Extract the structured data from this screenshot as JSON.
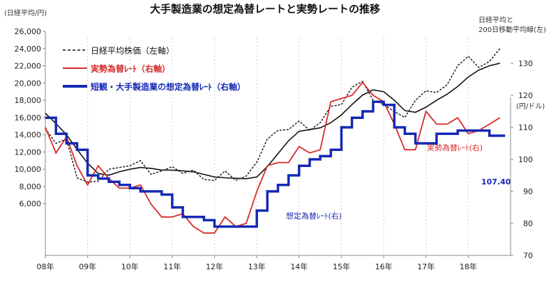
{
  "chart_data": {
    "type": "line",
    "title": "大手製造業の想定為替レートと実勢レートの推移",
    "y_left_label": "(日経平均/円)",
    "y_right_label": "(円/ドル)",
    "top_right_label_line1": "日経平均と",
    "top_right_label_line2": "200日移動平均線(左)",
    "left_ylim": [
      0,
      26000
    ],
    "left_yticks": [
      "26,000",
      "24,000",
      "22,000",
      "20,000",
      "18,000",
      "16,000",
      "14,000",
      "12,000",
      "10,000",
      "8,000",
      "6,000"
    ],
    "right_ylim": [
      70,
      140
    ],
    "right_yticks": [
      "130",
      "120",
      "110",
      "100",
      "90",
      "80",
      "70"
    ],
    "x_ticks": [
      "08年",
      "09年",
      "10年",
      "11年",
      "12年",
      "13年",
      "14年",
      "15年",
      "16年",
      "17年",
      "18年"
    ],
    "legend": {
      "nikkei": "日経平均株価（左軸）",
      "spot": "実勢為替ﾚｰﾄ（右軸）",
      "assumed": "短観・大手製造業の想定為替ﾚｰﾄ（右軸）"
    },
    "annotations": {
      "spot_label": "実勢為替ﾚｰﾄ(右)",
      "assumed_label": "想定為替ﾚｰﾄ(右)",
      "last_value": "107.40"
    },
    "colors": {
      "nikkei": "#111111",
      "ma200": "#111111",
      "spot": "#d62a2a",
      "assumed": "#1428b4",
      "title": "#111111"
    },
    "series": [
      {
        "name": "日経平均株価（左軸）",
        "axis": "left",
        "x": [
          2008.0,
          2008.25,
          2008.5,
          2008.75,
          2009.0,
          2009.25,
          2009.5,
          2009.75,
          2010.0,
          2010.25,
          2010.5,
          2010.75,
          2011.0,
          2011.25,
          2011.5,
          2011.75,
          2012.0,
          2012.25,
          2012.5,
          2012.75,
          2013.0,
          2013.25,
          2013.5,
          2013.75,
          2014.0,
          2014.25,
          2014.5,
          2014.75,
          2015.0,
          2015.25,
          2015.5,
          2015.75,
          2016.0,
          2016.25,
          2016.5,
          2016.75,
          2017.0,
          2017.25,
          2017.5,
          2017.75,
          2018.0,
          2018.25,
          2018.5,
          2018.75
        ],
        "values": [
          14700,
          13000,
          13500,
          9000,
          8500,
          8600,
          10000,
          10200,
          10400,
          11000,
          9400,
          9800,
          10300,
          9500,
          9900,
          8800,
          8700,
          9800,
          8700,
          9200,
          10800,
          13500,
          14500,
          14600,
          15600,
          14500,
          15400,
          17300,
          17500,
          19500,
          20200,
          18000,
          17500,
          16700,
          16000,
          18000,
          19100,
          18900,
          19800,
          22000,
          23100,
          21800,
          22500,
          24000
        ]
      },
      {
        "name": "200日移動平均線(左)",
        "axis": "left",
        "x": [
          2008.0,
          2008.25,
          2008.5,
          2008.75,
          2009.0,
          2009.25,
          2009.5,
          2009.75,
          2010.0,
          2010.25,
          2010.5,
          2010.75,
          2011.0,
          2011.25,
          2011.5,
          2011.75,
          2012.0,
          2012.25,
          2012.5,
          2012.75,
          2013.0,
          2013.25,
          2013.5,
          2013.75,
          2014.0,
          2014.25,
          2014.5,
          2014.75,
          2015.0,
          2015.25,
          2015.5,
          2015.75,
          2016.0,
          2016.25,
          2016.5,
          2016.75,
          2017.0,
          2017.25,
          2017.5,
          2017.75,
          2018.0,
          2018.25,
          2018.5,
          2018.75
        ],
        "values": [
          16500,
          15300,
          14000,
          12300,
          10700,
          9500,
          9300,
          9700,
          10000,
          10200,
          10100,
          9900,
          9900,
          9800,
          9700,
          9400,
          9100,
          9000,
          8950,
          8900,
          9100,
          10300,
          11800,
          13300,
          14400,
          14600,
          14800,
          15400,
          16300,
          17500,
          18600,
          19200,
          19000,
          18000,
          16800,
          16600,
          17200,
          18000,
          18700,
          19600,
          20700,
          21500,
          22000,
          22300
        ]
      },
      {
        "name": "実勢為替ﾚｰﾄ（右軸）",
        "axis": "right",
        "x": [
          2008.0,
          2008.25,
          2008.5,
          2008.75,
          2009.0,
          2009.25,
          2009.5,
          2009.75,
          2010.0,
          2010.25,
          2010.5,
          2010.75,
          2011.0,
          2011.25,
          2011.5,
          2011.75,
          2012.0,
          2012.25,
          2012.5,
          2012.75,
          2013.0,
          2013.25,
          2013.5,
          2013.75,
          2014.0,
          2014.25,
          2014.5,
          2014.75,
          2015.0,
          2015.25,
          2015.5,
          2015.75,
          2016.0,
          2016.25,
          2016.5,
          2016.75,
          2017.0,
          2017.25,
          2017.5,
          2017.75,
          2018.0,
          2018.25,
          2018.5,
          2018.75
        ],
        "values": [
          110,
          102,
          107,
          98,
          92,
          98,
          94,
          91,
          91,
          92,
          86,
          82,
          82,
          83,
          79,
          77,
          77,
          82,
          79,
          80,
          90,
          98,
          99,
          99,
          104,
          102,
          103,
          118,
          119,
          120,
          124,
          120,
          118,
          111,
          103,
          103,
          115,
          111,
          111,
          113,
          108,
          109,
          111,
          113
        ]
      },
      {
        "name": "短観・大手製造業の想定為替ﾚｰﾄ（右軸）",
        "axis": "right",
        "x": [
          2008.0,
          2008.25,
          2008.5,
          2008.75,
          2009.0,
          2009.25,
          2009.5,
          2009.75,
          2010.0,
          2010.25,
          2010.5,
          2010.75,
          2011.0,
          2011.25,
          2011.5,
          2011.75,
          2012.0,
          2012.25,
          2012.5,
          2012.75,
          2013.0,
          2013.25,
          2013.5,
          2013.75,
          2014.0,
          2014.25,
          2014.5,
          2014.75,
          2015.0,
          2015.25,
          2015.5,
          2015.75,
          2016.0,
          2016.25,
          2016.5,
          2016.75,
          2017.0,
          2017.25,
          2017.5,
          2017.75,
          2018.0,
          2018.25,
          2018.5,
          2018.75
        ],
        "values": [
          113,
          108,
          105,
          103,
          95,
          94,
          93,
          92,
          91,
          90,
          90,
          89,
          85,
          82,
          82,
          81,
          79,
          79,
          79,
          79,
          84,
          90,
          92,
          95,
          98,
          100,
          101,
          103,
          110,
          113,
          115,
          118,
          117,
          110,
          108,
          105,
          105,
          108,
          108,
          109,
          109,
          109,
          107.4,
          107.4
        ]
      }
    ]
  }
}
